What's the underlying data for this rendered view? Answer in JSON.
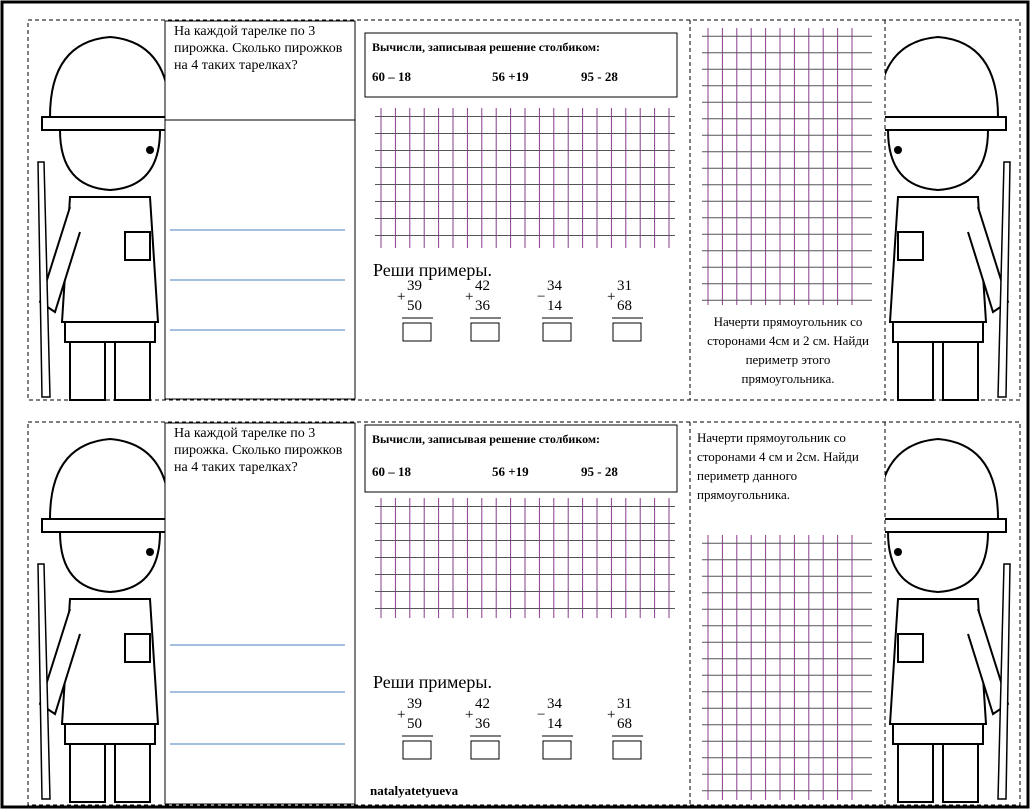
{
  "cards": [
    {
      "word_problem": "На каждой тарелке по 3 пирожка. Сколько пирожков на 4 таких тарелках?",
      "column_task": {
        "title": "Вычисли, записывая решение столбиком:",
        "expressions": [
          "60 – 18",
          "56 +19",
          "95 - 28"
        ]
      },
      "examples_title": "Реши примеры.",
      "examples": [
        {
          "op": "+",
          "a": "39",
          "b": "50"
        },
        {
          "op": "+",
          "a": "42",
          "b": "36"
        },
        {
          "op": "−",
          "a": "34",
          "b": "14"
        },
        {
          "op": "+",
          "a": "31",
          "b": "68"
        }
      ],
      "rectangle_task": "Начерти прямоугольник со сторонами 4см и 2 см. Найди периметр этого прямоугольника."
    },
    {
      "word_problem": "На каждой тарелке по 3 пирожка. Сколько пирожков на 4 таких тарелках?",
      "column_task": {
        "title": "Вычисли, записывая решение столбиком:",
        "expressions": [
          "60 – 18",
          "56 +19",
          "95 - 28"
        ]
      },
      "examples_title": "Реши примеры.",
      "examples": [
        {
          "op": "+",
          "a": "39",
          "b": "50"
        },
        {
          "op": "+",
          "a": "42",
          "b": "36"
        },
        {
          "op": "−",
          "a": "34",
          "b": "14"
        },
        {
          "op": "+",
          "a": "31",
          "b": "68"
        }
      ],
      "rectangle_task": "Начерти прямоугольник со сторонами 4 см и 2см. Найди периметр данного прямоугольника."
    }
  ],
  "footer": "natalyatetyueva"
}
